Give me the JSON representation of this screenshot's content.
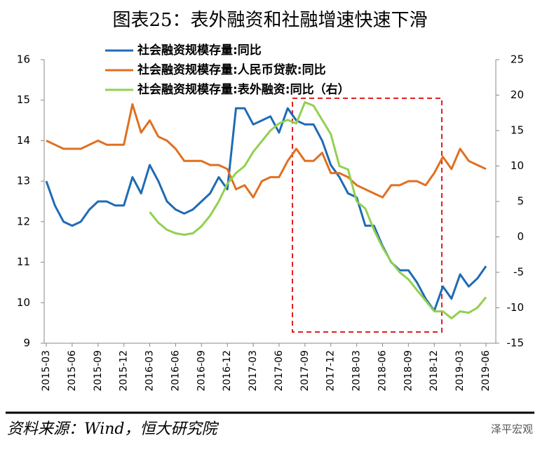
{
  "chart_data": {
    "type": "line",
    "title": "图表25：表外融资和社融增速快速下滑",
    "source": "资料来源：Wind，恒大研究院",
    "watermark": "泽平宏观",
    "categories": [
      "2015-03",
      null,
      null,
      "2015-06",
      null,
      null,
      "2015-09",
      null,
      null,
      "2015-12",
      null,
      null,
      "2016-03",
      null,
      null,
      "2016-06",
      null,
      null,
      "2016-09",
      null,
      null,
      "2016-12",
      null,
      null,
      "2017-03",
      null,
      null,
      "2017-06",
      null,
      null,
      "2017-09",
      null,
      null,
      "2017-12",
      null,
      null,
      "2018-03",
      null,
      null,
      "2018-06",
      null,
      null,
      "2018-09",
      null,
      null,
      "2018-12",
      null,
      null,
      "2019-03",
      null,
      null,
      "2019-06"
    ],
    "series": [
      {
        "name": "社会融资规模存量:同比",
        "color": "#1f6bb5",
        "axis": "y",
        "values": [
          13.0,
          12.4,
          12.0,
          11.9,
          12.0,
          12.3,
          12.5,
          12.5,
          12.4,
          12.4,
          13.1,
          12.7,
          13.4,
          13.0,
          12.5,
          12.3,
          12.2,
          12.3,
          12.5,
          12.7,
          13.1,
          12.8,
          14.8,
          14.8,
          14.4,
          14.5,
          14.6,
          14.2,
          14.8,
          14.5,
          14.4,
          14.4,
          14.0,
          13.4,
          13.1,
          12.7,
          12.6,
          11.9,
          11.9,
          11.4,
          11.0,
          10.8,
          10.8,
          10.5,
          10.1,
          9.8,
          10.4,
          10.1,
          10.7,
          10.4,
          10.6,
          10.9
        ]
      },
      {
        "name": "社会融资规模存量:人民币贷款:同比",
        "color": "#e07020",
        "axis": "y",
        "values": [
          14.0,
          13.9,
          13.8,
          13.8,
          13.8,
          13.9,
          14.0,
          13.9,
          13.9,
          13.9,
          14.9,
          14.2,
          14.5,
          14.1,
          14.0,
          13.8,
          13.5,
          13.5,
          13.5,
          13.4,
          13.4,
          13.3,
          12.8,
          12.9,
          12.6,
          13.0,
          13.1,
          13.1,
          13.5,
          13.8,
          13.5,
          13.5,
          13.7,
          13.2,
          13.2,
          13.1,
          12.9,
          12.8,
          12.7,
          12.6,
          12.9,
          12.9,
          13.0,
          13.0,
          12.9,
          13.2,
          13.6,
          13.3,
          13.8,
          13.5,
          13.4,
          13.3
        ]
      },
      {
        "name": "社会融资规模存量:表外融资:同比（右）",
        "color": "#92d050",
        "axis": "y2",
        "values": [
          null,
          null,
          null,
          null,
          null,
          null,
          null,
          null,
          null,
          null,
          null,
          null,
          3.5,
          2.0,
          1.0,
          0.5,
          0.3,
          0.5,
          1.5,
          3.0,
          5.0,
          7.5,
          9.0,
          10.0,
          12.0,
          13.5,
          15.0,
          16.0,
          16.5,
          16.0,
          19.0,
          18.5,
          16.5,
          14.5,
          10.0,
          9.5,
          5.0,
          4.0,
          1.0,
          -1.5,
          -3.5,
          -5.0,
          -6.0,
          -7.5,
          -9.0,
          -10.5,
          -10.5,
          -11.5,
          -10.5,
          -10.7,
          -10.0,
          -8.5
        ]
      }
    ],
    "ylim": [
      9,
      16
    ],
    "yticks": [
      9,
      10,
      11,
      12,
      13,
      14,
      15,
      16
    ],
    "y2lim": [
      -15,
      25
    ],
    "y2ticks": [
      -15,
      -10,
      -5,
      0,
      5,
      10,
      15,
      20,
      25
    ],
    "grid": false
  }
}
